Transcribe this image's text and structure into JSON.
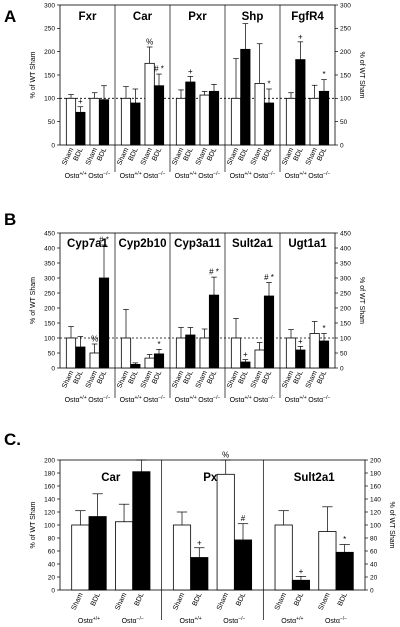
{
  "panels": [
    {
      "letter": "A",
      "ylabel_left": "% of WT Sham",
      "ylabel_right": "% of WT Sham",
      "ylim": [
        0,
        300
      ],
      "yticks": [
        0,
        50,
        100,
        150,
        200,
        250,
        300
      ],
      "reference_line": 100,
      "genotype_base": "Ostα",
      "genotypes": [
        "+/+",
        "−/−"
      ],
      "conditions": [
        "Sham",
        "BDL"
      ],
      "groups": [
        {
          "gene": "Fxr",
          "bars": [
            {
              "genotype": "+/+",
              "condition": "Sham",
              "value": 100,
              "error": 8,
              "sig": ""
            },
            {
              "genotype": "+/+",
              "condition": "BDL",
              "value": 70,
              "error": 12,
              "sig": "+"
            },
            {
              "genotype": "−/−",
              "condition": "Sham",
              "value": 100,
              "error": 12,
              "sig": ""
            },
            {
              "genotype": "−/−",
              "condition": "BDL",
              "value": 97,
              "error": 30,
              "sig": ""
            }
          ]
        },
        {
          "gene": "Car",
          "bars": [
            {
              "genotype": "+/+",
              "condition": "Sham",
              "value": 100,
              "error": 25,
              "sig": ""
            },
            {
              "genotype": "+/+",
              "condition": "BDL",
              "value": 90,
              "error": 30,
              "sig": ""
            },
            {
              "genotype": "−/−",
              "condition": "Sham",
              "value": 175,
              "error": 35,
              "sig": "%"
            },
            {
              "genotype": "−/−",
              "condition": "BDL",
              "value": 127,
              "error": 25,
              "sig": "# *"
            }
          ]
        },
        {
          "gene": "Pxr",
          "bars": [
            {
              "genotype": "+/+",
              "condition": "Sham",
              "value": 100,
              "error": 18,
              "sig": ""
            },
            {
              "genotype": "+/+",
              "condition": "BDL",
              "value": 135,
              "error": 12,
              "sig": "+"
            },
            {
              "genotype": "−/−",
              "condition": "Sham",
              "value": 107,
              "error": 8,
              "sig": ""
            },
            {
              "genotype": "−/−",
              "condition": "BDL",
              "value": 115,
              "error": 15,
              "sig": ""
            }
          ]
        },
        {
          "gene": "Shp",
          "bars": [
            {
              "genotype": "+/+",
              "condition": "Sham",
              "value": 100,
              "error": 85,
              "sig": ""
            },
            {
              "genotype": "+/+",
              "condition": "BDL",
              "value": 205,
              "error": 55,
              "sig": ""
            },
            {
              "genotype": "−/−",
              "condition": "Sham",
              "value": 132,
              "error": 85,
              "sig": ""
            },
            {
              "genotype": "−/−",
              "condition": "BDL",
              "value": 90,
              "error": 30,
              "sig": "*"
            }
          ]
        },
        {
          "gene": "FgfR4",
          "bars": [
            {
              "genotype": "+/+",
              "condition": "Sham",
              "value": 100,
              "error": 12,
              "sig": ""
            },
            {
              "genotype": "+/+",
              "condition": "BDL",
              "value": 183,
              "error": 38,
              "sig": "+"
            },
            {
              "genotype": "−/−",
              "condition": "Sham",
              "value": 100,
              "error": 28,
              "sig": ""
            },
            {
              "genotype": "−/−",
              "condition": "BDL",
              "value": 115,
              "error": 25,
              "sig": "*"
            }
          ]
        }
      ]
    },
    {
      "letter": "B",
      "ylabel_left": "% of WT Sham",
      "ylabel_right": "% of WT Sham",
      "ylim": [
        0,
        450
      ],
      "yticks": [
        0,
        50,
        100,
        150,
        200,
        250,
        300,
        350,
        400,
        450
      ],
      "reference_line": 100,
      "genotype_base": "Ostα",
      "genotypes": [
        "+/+",
        "−/−"
      ],
      "conditions": [
        "Sham",
        "BDL"
      ],
      "groups": [
        {
          "gene": "Cyp7a1",
          "bars": [
            {
              "genotype": "+/+",
              "condition": "Sham",
              "value": 100,
              "error": 38,
              "sig": ""
            },
            {
              "genotype": "+/+",
              "condition": "BDL",
              "value": 70,
              "error": 35,
              "sig": ""
            },
            {
              "genotype": "−/−",
              "condition": "Sham",
              "value": 50,
              "error": 30,
              "sig": "%"
            },
            {
              "genotype": "−/−",
              "condition": "BDL",
              "value": 300,
              "error": 110,
              "sig": "# *"
            }
          ]
        },
        {
          "gene": "Cyp2b10",
          "bars": [
            {
              "genotype": "+/+",
              "condition": "Sham",
              "value": 100,
              "error": 95,
              "sig": ""
            },
            {
              "genotype": "+/+",
              "condition": "BDL",
              "value": 12,
              "error": 5,
              "sig": ""
            },
            {
              "genotype": "−/−",
              "condition": "Sham",
              "value": 33,
              "error": 12,
              "sig": ""
            },
            {
              "genotype": "−/−",
              "condition": "BDL",
              "value": 47,
              "error": 15,
              "sig": "*"
            }
          ]
        },
        {
          "gene": "Cyp3a11",
          "bars": [
            {
              "genotype": "+/+",
              "condition": "Sham",
              "value": 100,
              "error": 35,
              "sig": ""
            },
            {
              "genotype": "+/+",
              "condition": "BDL",
              "value": 110,
              "error": 25,
              "sig": ""
            },
            {
              "genotype": "−/−",
              "condition": "Sham",
              "value": 100,
              "error": 30,
              "sig": ""
            },
            {
              "genotype": "−/−",
              "condition": "BDL",
              "value": 243,
              "error": 60,
              "sig": "# *"
            }
          ]
        },
        {
          "gene": "Sult2a1",
          "bars": [
            {
              "genotype": "+/+",
              "condition": "Sham",
              "value": 100,
              "error": 65,
              "sig": ""
            },
            {
              "genotype": "+/+",
              "condition": "BDL",
              "value": 20,
              "error": 8,
              "sig": "+"
            },
            {
              "genotype": "−/−",
              "condition": "Sham",
              "value": 60,
              "error": 25,
              "sig": ""
            },
            {
              "genotype": "−/−",
              "condition": "BDL",
              "value": 240,
              "error": 45,
              "sig": "# *"
            }
          ]
        },
        {
          "gene": "Ugt1a1",
          "bars": [
            {
              "genotype": "+/+",
              "condition": "Sham",
              "value": 100,
              "error": 28,
              "sig": ""
            },
            {
              "genotype": "+/+",
              "condition": "BDL",
              "value": 60,
              "error": 12,
              "sig": "+"
            },
            {
              "genotype": "−/−",
              "condition": "Sham",
              "value": 115,
              "error": 40,
              "sig": ""
            },
            {
              "genotype": "−/−",
              "condition": "BDL",
              "value": 90,
              "error": 25,
              "sig": "*"
            }
          ]
        }
      ]
    },
    {
      "letter": "C.",
      "ylabel_left": "% of WT Sham",
      "ylabel_right": "% of WT Sham",
      "ylim": [
        0,
        200
      ],
      "yticks": [
        0,
        20,
        40,
        60,
        80,
        100,
        120,
        140,
        160,
        180,
        200
      ],
      "reference_line": null,
      "genotype_base": "Ostα",
      "genotypes": [
        "+/+",
        "−/−"
      ],
      "conditions": [
        "Sham",
        "BDL"
      ],
      "groups": [
        {
          "gene": "Car",
          "bars": [
            {
              "genotype": "+/+",
              "condition": "Sham",
              "value": 100,
              "error": 22,
              "sig": ""
            },
            {
              "genotype": "+/+",
              "condition": "BDL",
              "value": 113,
              "error": 35,
              "sig": ""
            },
            {
              "genotype": "−/−",
              "condition": "Sham",
              "value": 105,
              "error": 27,
              "sig": ""
            },
            {
              "genotype": "−/−",
              "condition": "BDL",
              "value": 182,
              "error": 80,
              "sig": ""
            }
          ]
        },
        {
          "gene": "Pxr",
          "bars": [
            {
              "genotype": "+/+",
              "condition": "Sham",
              "value": 100,
              "error": 20,
              "sig": ""
            },
            {
              "genotype": "+/+",
              "condition": "BDL",
              "value": 50,
              "error": 15,
              "sig": "+"
            },
            {
              "genotype": "−/−",
              "condition": "Sham",
              "value": 178,
              "error": 65,
              "sig": "%"
            },
            {
              "genotype": "−/−",
              "condition": "BDL",
              "value": 77,
              "error": 25,
              "sig": "#"
            }
          ]
        },
        {
          "gene": "Sult2a1",
          "bars": [
            {
              "genotype": "+/+",
              "condition": "Sham",
              "value": 100,
              "error": 22,
              "sig": ""
            },
            {
              "genotype": "+/+",
              "condition": "BDL",
              "value": 15,
              "error": 6,
              "sig": "+"
            },
            {
              "genotype": "−/−",
              "condition": "Sham",
              "value": 90,
              "error": 38,
              "sig": ""
            },
            {
              "genotype": "−/−",
              "condition": "BDL",
              "value": 58,
              "error": 12,
              "sig": "*"
            }
          ]
        }
      ]
    }
  ]
}
